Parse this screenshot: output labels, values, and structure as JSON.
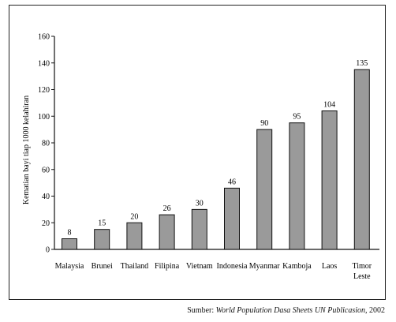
{
  "chart_data": {
    "type": "bar",
    "categories": [
      "Malaysia",
      "Brunei",
      "Thailand",
      "Filipina",
      "Vietnam",
      "Indonesia",
      "Myanmar",
      "Kamboja",
      "Laos",
      "Timor Leste"
    ],
    "category_lines": [
      [
        "Malaysia"
      ],
      [
        "Brunei"
      ],
      [
        "Thailand"
      ],
      [
        "Filipina"
      ],
      [
        "Vietnam"
      ],
      [
        "Indonesia"
      ],
      [
        "Myanmar"
      ],
      [
        "Kamboja"
      ],
      [
        "Laos"
      ],
      [
        "Timor",
        "Leste"
      ]
    ],
    "values": [
      8,
      15,
      20,
      26,
      30,
      46,
      90,
      95,
      104,
      135
    ],
    "data_labels": [
      "8",
      "15",
      "20",
      "26",
      "30",
      "46",
      "90",
      "95",
      "104",
      "135"
    ],
    "ylabel": "Kematian bayi tiap 1000 kelahiran",
    "ylim": [
      0,
      160
    ],
    "yticks": [
      0,
      20,
      40,
      60,
      80,
      100,
      120,
      140,
      160
    ],
    "grid": false,
    "bar_color": "#9a9a9a",
    "bar_edge_color": "#111111"
  },
  "source": {
    "label": "Sumber:",
    "title": "World Population Dasa Sheets UN Publicasion",
    "year": ", 2002"
  }
}
